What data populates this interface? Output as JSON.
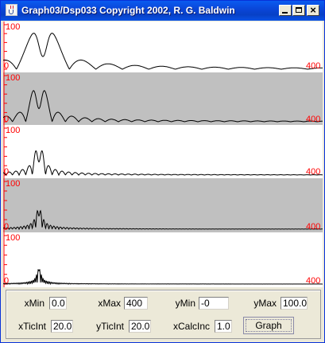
{
  "window": {
    "title": "Graph03/Dsp033 Copyright 2002, R. G. Baldwin",
    "icon": "java-cup-icon",
    "controls": [
      "minimize-icon",
      "maximize-icon",
      "close-icon"
    ]
  },
  "plots": [
    {
      "y_top_label": "100",
      "x_left_label": "0",
      "x_right_label": "400",
      "background": "#ffffff"
    },
    {
      "y_top_label": "100",
      "x_left_label": "0",
      "x_right_label": "400",
      "background": "#c0c0c0"
    },
    {
      "y_top_label": "100",
      "x_left_label": "0",
      "x_right_label": "400",
      "background": "#ffffff"
    },
    {
      "y_top_label": "100",
      "x_left_label": "0",
      "x_right_label": "400",
      "background": "#c0c0c0"
    },
    {
      "y_top_label": "100",
      "x_left_label": "0",
      "x_right_label": "400",
      "background": "#ffffff"
    }
  ],
  "colors": {
    "axis_labels": "#ff0000",
    "curve": "#000000",
    "title_bar": "#0a45d6"
  },
  "controls": {
    "xMin": {
      "label": "xMin",
      "value": "0.0"
    },
    "xMax": {
      "label": "xMax",
      "value": "400"
    },
    "yMin": {
      "label": "yMin",
      "value": "-0"
    },
    "yMax": {
      "label": "yMax",
      "value": "100.0"
    },
    "xTicInt": {
      "label": "xTicInt",
      "value": "20.0"
    },
    "yTicInt": {
      "label": "yTicInt",
      "value": "20.0"
    },
    "xCalcInc": {
      "label": "xCalcInc",
      "value": "1.0"
    },
    "graph_button": "Graph"
  }
}
